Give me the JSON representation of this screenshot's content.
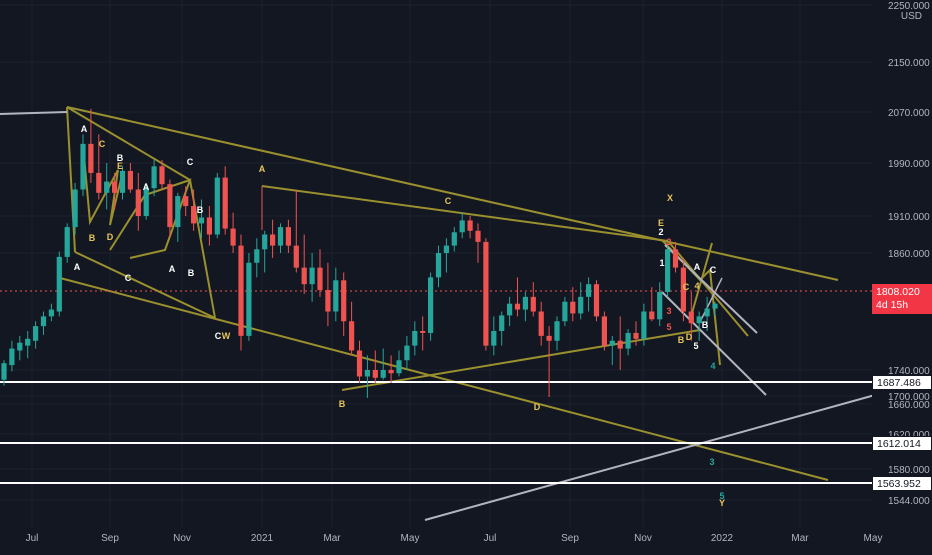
{
  "currency": "USD",
  "colors": {
    "background": "#131722",
    "up": "#26a69a",
    "down": "#ef5350",
    "olive": "#9a902e",
    "gray_line": "#b2b5be",
    "white_line": "#ffffff",
    "grid": "#1e222d",
    "axis_text": "#b2b5be",
    "label_white": "#ffffff",
    "label_yellow": "#e5c55a",
    "label_teal": "#26a69a",
    "label_red": "#ef5350"
  },
  "price_axis": {
    "ticks": [
      "2250.000",
      "2150.000",
      "2070.000",
      "1990.000",
      "1910.000",
      "1860.000",
      "1740.000",
      "1700.000",
      "1660.000",
      "1620.000",
      "1580.000",
      "1544.000"
    ]
  },
  "time_axis": {
    "ticks": [
      "Jul",
      "Sep",
      "Nov",
      "2021",
      "Mar",
      "May",
      "Jul",
      "Sep",
      "Nov",
      "2022",
      "Mar",
      "May"
    ]
  },
  "price_tags": {
    "current_price": "1808.020",
    "countdown": "4d 15h",
    "level_1": "1687.486",
    "level_2": "1612.014",
    "level_3": "1563.952"
  },
  "wave_labels": [
    {
      "text": "A",
      "color": "white"
    },
    {
      "text": "C",
      "color": "yellow"
    },
    {
      "text": "B",
      "color": "white"
    },
    {
      "text": "E",
      "color": "yellow"
    },
    {
      "text": "A",
      "color": "white"
    },
    {
      "text": "B",
      "color": "yellow"
    },
    {
      "text": "D",
      "color": "yellow"
    },
    {
      "text": "A",
      "color": "white"
    },
    {
      "text": "C",
      "color": "white"
    },
    {
      "text": "C",
      "color": "white"
    },
    {
      "text": "B",
      "color": "white"
    },
    {
      "text": "A",
      "color": "white"
    },
    {
      "text": "B",
      "color": "white"
    },
    {
      "text": "C",
      "color": "white"
    },
    {
      "text": "W",
      "color": "yellow"
    },
    {
      "text": "A",
      "color": "yellow"
    },
    {
      "text": "B",
      "color": "yellow"
    },
    {
      "text": "C",
      "color": "yellow"
    },
    {
      "text": "D",
      "color": "yellow"
    },
    {
      "text": "X",
      "color": "yellow"
    },
    {
      "text": "E",
      "color": "yellow"
    },
    {
      "text": "2",
      "color": "white"
    },
    {
      "text": "1",
      "color": "white"
    },
    {
      "text": "A",
      "color": "white"
    },
    {
      "text": "C",
      "color": "white"
    },
    {
      "text": "C",
      "color": "yellow"
    },
    {
      "text": "4",
      "color": "yellow"
    },
    {
      "text": "B",
      "color": "white"
    },
    {
      "text": "B",
      "color": "yellow"
    },
    {
      "text": "D",
      "color": "yellow"
    },
    {
      "text": "5",
      "color": "white"
    },
    {
      "text": "3",
      "color": "red"
    },
    {
      "text": "5",
      "color": "red"
    },
    {
      "text": "2",
      "color": "red"
    },
    {
      "text": "4",
      "color": "teal"
    },
    {
      "text": "3",
      "color": "teal"
    },
    {
      "text": "5",
      "color": "teal"
    },
    {
      "text": "Y",
      "color": "yellow"
    }
  ],
  "candles": [
    [
      1725,
      1750,
      1716,
      1747
    ],
    [
      1745,
      1770,
      1738,
      1762
    ],
    [
      1760,
      1775,
      1750,
      1768
    ],
    [
      1765,
      1780,
      1752,
      1772
    ],
    [
      1770,
      1790,
      1762,
      1785
    ],
    [
      1785,
      1800,
      1776,
      1795
    ],
    [
      1795,
      1808,
      1790,
      1802
    ],
    [
      1800,
      1862,
      1795,
      1856
    ],
    [
      1856,
      1900,
      1850,
      1895
    ],
    [
      1895,
      1960,
      1885,
      1950
    ],
    [
      1950,
      2035,
      1940,
      2020
    ],
    [
      2020,
      2075,
      1960,
      1975
    ],
    [
      1975,
      2035,
      1935,
      1945
    ],
    [
      1945,
      1990,
      1920,
      1962
    ],
    [
      1962,
      1975,
      1920,
      1945
    ],
    [
      1945,
      1985,
      1935,
      1978
    ],
    [
      1978,
      1990,
      1945,
      1950
    ],
    [
      1950,
      1975,
      1890,
      1910
    ],
    [
      1910,
      1960,
      1905,
      1952
    ],
    [
      1952,
      1995,
      1940,
      1985
    ],
    [
      1985,
      1995,
      1950,
      1958
    ],
    [
      1958,
      1965,
      1880,
      1895
    ],
    [
      1895,
      1945,
      1875,
      1940
    ],
    [
      1940,
      1955,
      1910,
      1925
    ],
    [
      1925,
      1950,
      1890,
      1900
    ],
    [
      1900,
      1935,
      1880,
      1908
    ],
    [
      1908,
      1925,
      1870,
      1885
    ],
    [
      1885,
      1975,
      1880,
      1968
    ],
    [
      1968,
      1985,
      1885,
      1893
    ],
    [
      1893,
      1915,
      1860,
      1870
    ],
    [
      1870,
      1885,
      1760,
      1775
    ],
    [
      1775,
      1860,
      1770,
      1850
    ],
    [
      1850,
      1880,
      1835,
      1865
    ],
    [
      1865,
      1890,
      1840,
      1885
    ],
    [
      1885,
      1905,
      1855,
      1870
    ],
    [
      1870,
      1900,
      1860,
      1895
    ],
    [
      1895,
      1905,
      1860,
      1870
    ],
    [
      1870,
      1950,
      1840,
      1845
    ],
    [
      1845,
      1885,
      1818,
      1828
    ],
    [
      1828,
      1860,
      1810,
      1845
    ],
    [
      1845,
      1865,
      1815,
      1822
    ],
    [
      1822,
      1850,
      1785,
      1800
    ],
    [
      1800,
      1845,
      1790,
      1832
    ],
    [
      1832,
      1840,
      1775,
      1790
    ],
    [
      1790,
      1810,
      1755,
      1760
    ],
    [
      1760,
      1770,
      1720,
      1730
    ],
    [
      1730,
      1755,
      1690,
      1740
    ],
    [
      1740,
      1760,
      1720,
      1728
    ],
    [
      1728,
      1762,
      1725,
      1740
    ],
    [
      1740,
      1755,
      1720,
      1735
    ],
    [
      1735,
      1760,
      1730,
      1750
    ],
    [
      1750,
      1775,
      1740,
      1765
    ],
    [
      1765,
      1790,
      1755,
      1780
    ],
    [
      1780,
      1795,
      1760,
      1778
    ],
    [
      1778,
      1840,
      1770,
      1835
    ],
    [
      1835,
      1870,
      1825,
      1860
    ],
    [
      1860,
      1880,
      1840,
      1870
    ],
    [
      1870,
      1895,
      1862,
      1888
    ],
    [
      1888,
      1915,
      1880,
      1904
    ],
    [
      1904,
      1910,
      1880,
      1890
    ],
    [
      1890,
      1900,
      1850,
      1875
    ],
    [
      1875,
      1880,
      1760,
      1765
    ],
    [
      1765,
      1795,
      1755,
      1780
    ],
    [
      1780,
      1800,
      1765,
      1796
    ],
    [
      1796,
      1815,
      1785,
      1808
    ],
    [
      1808,
      1835,
      1795,
      1802
    ],
    [
      1802,
      1820,
      1790,
      1815
    ],
    [
      1815,
      1830,
      1795,
      1800
    ],
    [
      1800,
      1810,
      1765,
      1775
    ],
    [
      1775,
      1785,
      1695,
      1770
    ],
    [
      1770,
      1795,
      1760,
      1790
    ],
    [
      1790,
      1815,
      1785,
      1810
    ],
    [
      1810,
      1825,
      1790,
      1798
    ],
    [
      1798,
      1830,
      1792,
      1815
    ],
    [
      1815,
      1835,
      1800,
      1828
    ],
    [
      1828,
      1832,
      1790,
      1795
    ],
    [
      1795,
      1800,
      1760,
      1765
    ],
    [
      1765,
      1775,
      1745,
      1770
    ],
    [
      1770,
      1795,
      1740,
      1762
    ],
    [
      1762,
      1782,
      1755,
      1778
    ],
    [
      1778,
      1790,
      1765,
      1772
    ],
    [
      1772,
      1808,
      1765,
      1800
    ],
    [
      1800,
      1825,
      1790,
      1792
    ],
    [
      1792,
      1830,
      1785,
      1820
    ],
    [
      1820,
      1870,
      1815,
      1865
    ],
    [
      1865,
      1875,
      1840,
      1845
    ],
    [
      1845,
      1855,
      1790,
      1800
    ],
    [
      1800,
      1820,
      1770,
      1788
    ],
    [
      1788,
      1800,
      1770,
      1795
    ],
    [
      1795,
      1815,
      1780,
      1803
    ],
    [
      1803,
      1810,
      1795,
      1808
    ]
  ]
}
